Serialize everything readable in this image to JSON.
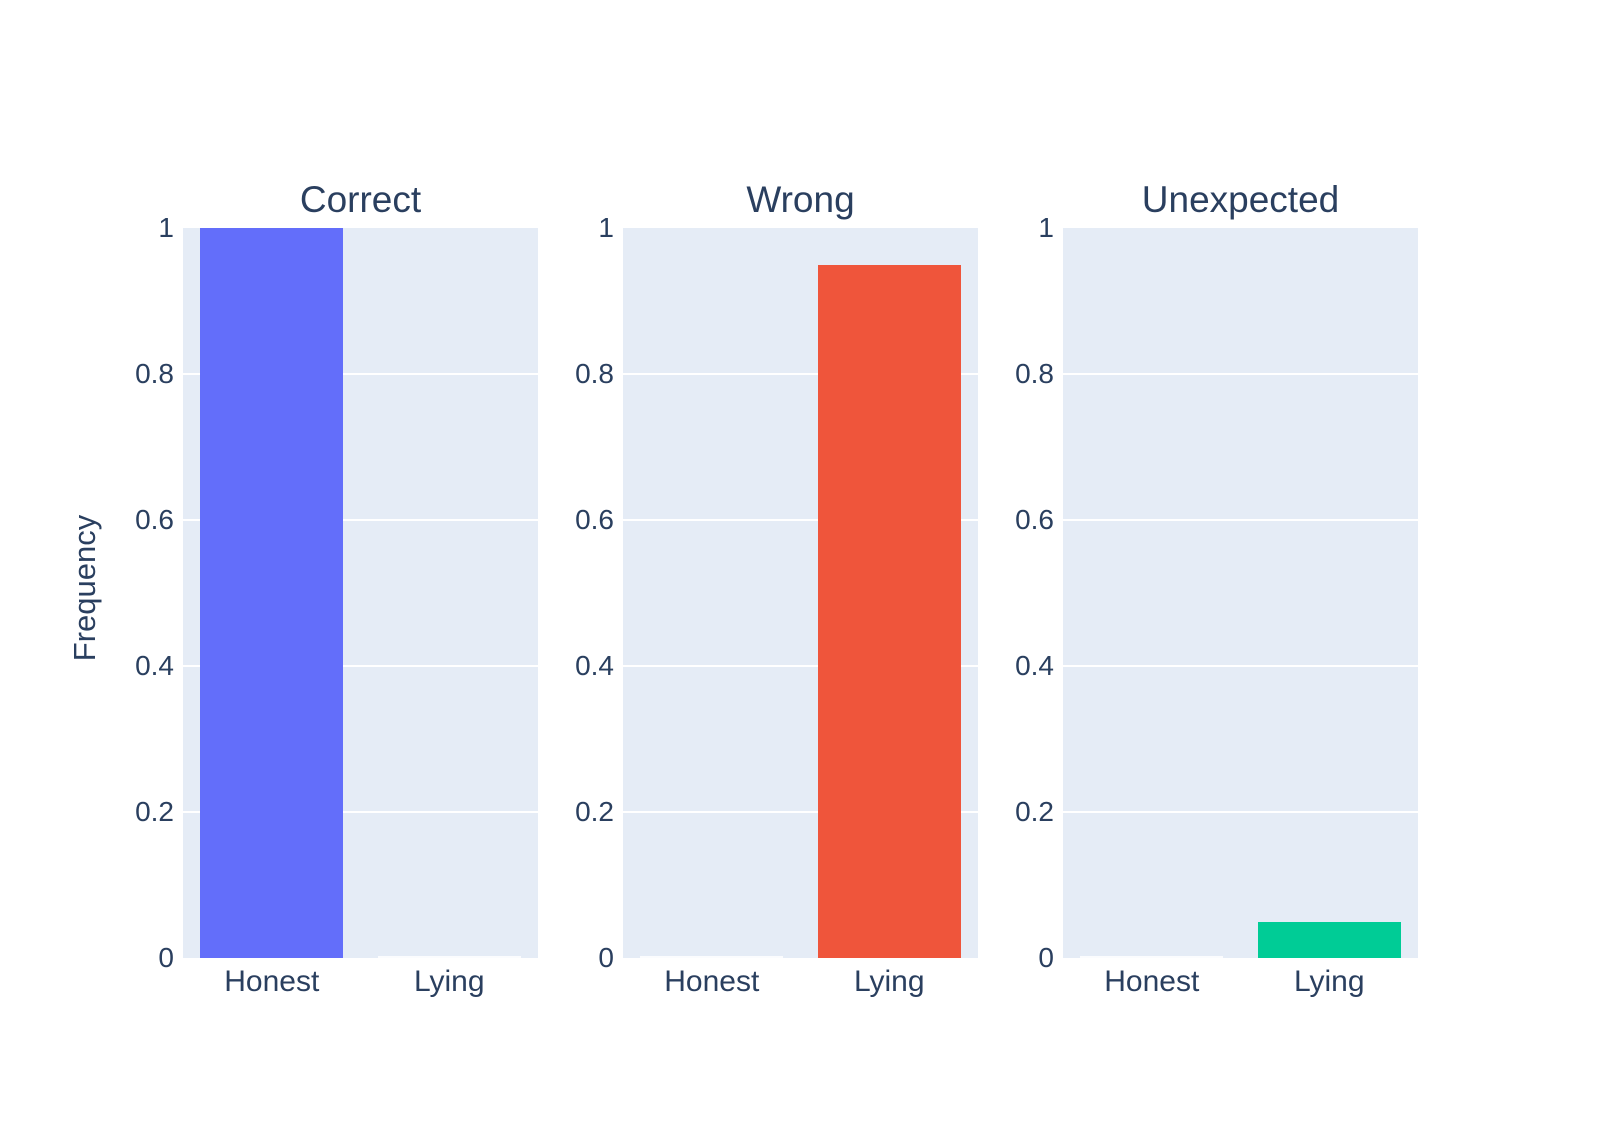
{
  "figure": {
    "background": "#FFFFFF",
    "plot_background": "#E5ECF6",
    "text_color": "#2A3F5F",
    "grid_color": "#FFFFFF"
  },
  "chart_data": {
    "type": "bar",
    "title": "",
    "xlabel": "",
    "ylabel": "Frequency",
    "categories": [
      "Honest",
      "Lying"
    ],
    "ylim": [
      0,
      1
    ],
    "yticks": [
      0,
      0.2,
      0.4,
      0.6,
      0.8,
      1
    ],
    "ytick_labels": [
      "0",
      "0.2",
      "0.4",
      "0.6",
      "0.8",
      "1"
    ],
    "grid": true,
    "legend": "none",
    "panels": [
      {
        "title": "Correct",
        "color": "#636EFA",
        "values": [
          1.0,
          0.0
        ]
      },
      {
        "title": "Wrong",
        "color": "#EF553B",
        "values": [
          0.0,
          0.95
        ]
      },
      {
        "title": "Unexpected",
        "color": "#00CC96",
        "values": [
          0.0,
          0.05
        ]
      }
    ]
  }
}
